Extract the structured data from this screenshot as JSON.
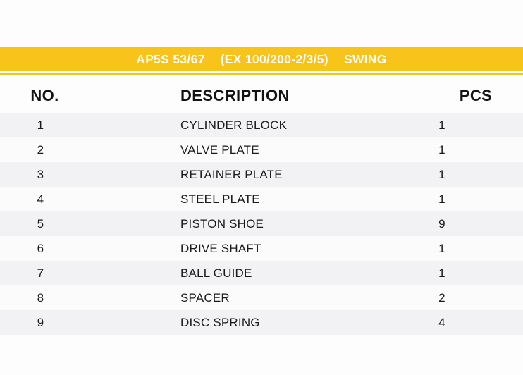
{
  "title_bar": {
    "model": "AP5S 53/67",
    "series": "(EX 100/200-2/3/5)",
    "application": "SWING",
    "bg_color": "#F8C41B",
    "text_color": "#FFFFFF"
  },
  "table": {
    "columns": [
      "NO.",
      "DESCRIPTION",
      "PCS"
    ],
    "stripe_color": "#F2F2F4",
    "rows": [
      {
        "no": "1",
        "description": "CYLINDER BLOCK",
        "pcs": "1"
      },
      {
        "no": "2",
        "description": "VALVE PLATE",
        "pcs": "1"
      },
      {
        "no": "3",
        "description": "RETAINER PLATE",
        "pcs": "1"
      },
      {
        "no": "4",
        "description": "STEEL PLATE",
        "pcs": "1"
      },
      {
        "no": "5",
        "description": "PISTON SHOE",
        "pcs": "9"
      },
      {
        "no": "6",
        "description": "DRIVE SHAFT",
        "pcs": "1"
      },
      {
        "no": "7",
        "description": "BALL GUIDE",
        "pcs": "1"
      },
      {
        "no": "8",
        "description": "SPACER",
        "pcs": "2"
      },
      {
        "no": "9",
        "description": "DISC SPRING",
        "pcs": "4"
      }
    ]
  }
}
